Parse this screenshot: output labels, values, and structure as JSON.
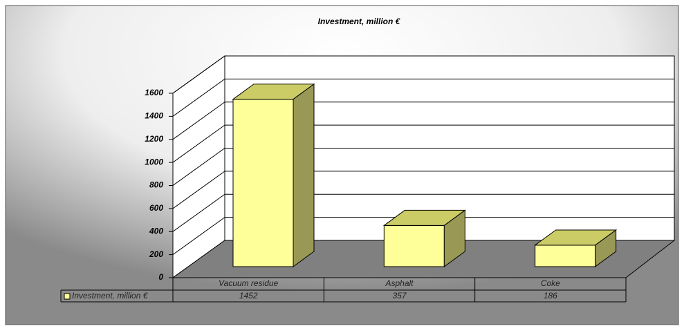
{
  "chart_data": {
    "type": "bar",
    "title": "Investment, million €",
    "categories": [
      "Vacuum residue",
      "Asphalt",
      "Coke"
    ],
    "series": [
      {
        "name": "Investment, million €",
        "color": "#ffff99",
        "values": [
          1452,
          357,
          186
        ]
      }
    ],
    "ylim": [
      0,
      1600
    ],
    "yticks": [
      0,
      200,
      400,
      600,
      800,
      1000,
      1200,
      1400,
      1600
    ],
    "grid": true
  }
}
